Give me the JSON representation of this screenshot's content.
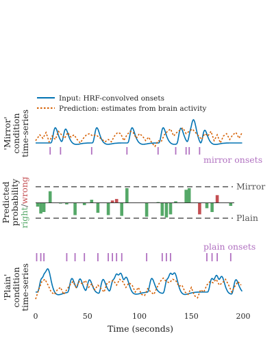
{
  "chart_data": {
    "type": "line",
    "xlabel": "Time (seconds)",
    "x_ticks": [
      0,
      50,
      100,
      150,
      200
    ],
    "xlim": [
      0,
      200
    ],
    "legend": {
      "position": "top-left",
      "entries": [
        {
          "label": "Input: HRF-convolved onsets",
          "color": "#0072b2",
          "style": "solid"
        },
        {
          "label": "Prediction: estimates from brain activity",
          "color": "#d55e00",
          "style": "dotted"
        }
      ]
    },
    "colors": {
      "input": "#0072b2",
      "prediction": "#d55e00",
      "onsets": "#b070c0",
      "right": "#55a868",
      "wrong": "#c44e52",
      "dashes": "#555555"
    },
    "panels": [
      {
        "name": "mirror",
        "ylabel_lines": [
          "'Mirror'",
          "condition",
          "time-series"
        ],
        "onset_label": "mirror onsets",
        "onsets": [
          14,
          24,
          54,
          88,
          118,
          135,
          145,
          148,
          158
        ],
        "input_baseline": 0.0,
        "prediction_series": [
          [
            0,
            0.1
          ],
          [
            4,
            0.35
          ],
          [
            7,
            0.2
          ],
          [
            10,
            0.45
          ],
          [
            13,
            0.05
          ],
          [
            16,
            0.3
          ],
          [
            19,
            0.15
          ],
          [
            22,
            0.5
          ],
          [
            25,
            0.35
          ],
          [
            28,
            0.2
          ],
          [
            31,
            0.45
          ],
          [
            34,
            0.25
          ],
          [
            37,
            0.35
          ],
          [
            40,
            0.15
          ],
          [
            43,
            0.0
          ],
          [
            46,
            0.2
          ],
          [
            49,
            0.35
          ],
          [
            52,
            0.4
          ],
          [
            55,
            0.3
          ],
          [
            58,
            0.35
          ],
          [
            61,
            0.25
          ],
          [
            64,
            0.15
          ],
          [
            67,
            0.05
          ],
          [
            70,
            0.15
          ],
          [
            73,
            0.05
          ],
          [
            76,
            0.3
          ],
          [
            79,
            0.45
          ],
          [
            82,
            0.4
          ],
          [
            85,
            0.1
          ],
          [
            88,
            0.35
          ],
          [
            91,
            0.5
          ],
          [
            94,
            0.45
          ],
          [
            97,
            0.2
          ],
          [
            100,
            0.4
          ],
          [
            103,
            0.3
          ],
          [
            106,
            0.1
          ],
          [
            109,
            0.25
          ],
          [
            112,
            0.0
          ],
          [
            115,
            -0.15
          ],
          [
            118,
            0.1
          ],
          [
            121,
            0.05
          ],
          [
            124,
            0.35
          ],
          [
            127,
            0.5
          ],
          [
            130,
            0.6
          ],
          [
            133,
            0.3
          ],
          [
            136,
            0.45
          ],
          [
            139,
            0.55
          ],
          [
            142,
            0.65
          ],
          [
            145,
            0.4
          ],
          [
            148,
            0.5
          ],
          [
            151,
            0.6
          ],
          [
            154,
            0.45
          ],
          [
            157,
            0.3
          ],
          [
            160,
            0.15
          ],
          [
            163,
            0.4
          ],
          [
            166,
            0.3
          ],
          [
            169,
            0.5
          ],
          [
            172,
            0.1
          ],
          [
            175,
            0.35
          ],
          [
            178,
            0.0
          ],
          [
            181,
            0.3
          ],
          [
            184,
            0.4
          ],
          [
            187,
            0.15
          ],
          [
            190,
            0.35
          ],
          [
            193,
            0.45
          ],
          [
            196,
            0.2
          ],
          [
            199,
            0.45
          ]
        ]
      },
      {
        "name": "plain",
        "ylabel_lines": [
          "'Plain'",
          "condition",
          "time-series"
        ],
        "onset_label": "plain onsets",
        "onsets": [
          1,
          5,
          8,
          30,
          38,
          47,
          60,
          70,
          74,
          78,
          83,
          107,
          122,
          126,
          130,
          165,
          170,
          175,
          188
        ],
        "prediction_series": [
          [
            0,
            -0.3
          ],
          [
            3,
            0.1
          ],
          [
            6,
            0.45
          ],
          [
            9,
            0.55
          ],
          [
            12,
            0.3
          ],
          [
            15,
            0.0
          ],
          [
            18,
            -0.1
          ],
          [
            21,
            0.1
          ],
          [
            24,
            0.2
          ],
          [
            27,
            -0.1
          ],
          [
            30,
            0.1
          ],
          [
            33,
            0.3
          ],
          [
            36,
            0.45
          ],
          [
            39,
            0.2
          ],
          [
            42,
            0.45
          ],
          [
            45,
            0.35
          ],
          [
            48,
            0.5
          ],
          [
            51,
            0.2
          ],
          [
            54,
            0.35
          ],
          [
            57,
            0.1
          ],
          [
            60,
            0.3
          ],
          [
            63,
            0.15
          ],
          [
            66,
            0.0
          ],
          [
            69,
            0.4
          ],
          [
            72,
            0.45
          ],
          [
            75,
            0.5
          ],
          [
            78,
            0.3
          ],
          [
            81,
            0.55
          ],
          [
            84,
            0.45
          ],
          [
            87,
            0.2
          ],
          [
            90,
            0.4
          ],
          [
            93,
            0.3
          ],
          [
            96,
            0.0
          ],
          [
            99,
            0.2
          ],
          [
            102,
            -0.1
          ],
          [
            105,
            -0.15
          ],
          [
            108,
            0.15
          ],
          [
            111,
            0.0
          ],
          [
            114,
            -0.1
          ],
          [
            117,
            0.2
          ],
          [
            120,
            0.45
          ],
          [
            123,
            0.6
          ],
          [
            126,
            0.45
          ],
          [
            129,
            0.4
          ],
          [
            132,
            0.55
          ],
          [
            135,
            0.5
          ],
          [
            138,
            0.25
          ],
          [
            141,
            0.3
          ],
          [
            144,
            0.0
          ],
          [
            147,
            -0.1
          ],
          [
            150,
            0.2
          ],
          [
            153,
            -0.15
          ],
          [
            156,
            -0.25
          ],
          [
            159,
            0.1
          ],
          [
            162,
            0.0
          ],
          [
            165,
            0.3
          ],
          [
            168,
            0.45
          ],
          [
            171,
            0.4
          ],
          [
            174,
            0.55
          ],
          [
            177,
            0.3
          ],
          [
            180,
            0.4
          ],
          [
            183,
            0.55
          ],
          [
            186,
            0.3
          ],
          [
            189,
            0.0
          ],
          [
            192,
            0.25
          ],
          [
            195,
            0.45
          ],
          [
            198,
            0.3
          ]
        ]
      }
    ],
    "probability_panel": {
      "ylabel_parts": {
        "line1": "Predicted",
        "line2": "probability",
        "right": "right",
        "slash": "/",
        "wrong": "wrong"
      },
      "upper_label": "Mirror",
      "lower_label": "Plain",
      "ylim": [
        -1,
        1
      ],
      "bars": [
        {
          "t": 2,
          "v": -0.25,
          "ok": true
        },
        {
          "t": 5,
          "v": -0.7,
          "ok": true
        },
        {
          "t": 8,
          "v": -0.6,
          "ok": true
        },
        {
          "t": 14,
          "v": 0.75,
          "ok": true
        },
        {
          "t": 24,
          "v": -0.05,
          "ok": true
        },
        {
          "t": 30,
          "v": -0.1,
          "ok": true
        },
        {
          "t": 38,
          "v": -0.8,
          "ok": true
        },
        {
          "t": 47,
          "v": -0.15,
          "ok": true
        },
        {
          "t": 54,
          "v": 0.2,
          "ok": true
        },
        {
          "t": 60,
          "v": -0.65,
          "ok": true
        },
        {
          "t": 70,
          "v": -0.8,
          "ok": true
        },
        {
          "t": 74,
          "v": 0.15,
          "ok": false
        },
        {
          "t": 78,
          "v": 0.25,
          "ok": false
        },
        {
          "t": 83,
          "v": -0.85,
          "ok": true
        },
        {
          "t": 88,
          "v": 0.95,
          "ok": true
        },
        {
          "t": 107,
          "v": -0.9,
          "ok": true
        },
        {
          "t": 118,
          "v": 0.05,
          "ok": true
        },
        {
          "t": 122,
          "v": -0.85,
          "ok": true
        },
        {
          "t": 126,
          "v": -0.95,
          "ok": true
        },
        {
          "t": 130,
          "v": -0.75,
          "ok": true
        },
        {
          "t": 135,
          "v": 0.1,
          "ok": true
        },
        {
          "t": 145,
          "v": 0.85,
          "ok": true
        },
        {
          "t": 148,
          "v": 0.95,
          "ok": true
        },
        {
          "t": 158,
          "v": -0.75,
          "ok": false
        },
        {
          "t": 165,
          "v": -0.35,
          "ok": true
        },
        {
          "t": 170,
          "v": -0.6,
          "ok": true
        },
        {
          "t": 175,
          "v": 0.5,
          "ok": false
        },
        {
          "t": 188,
          "v": -0.2,
          "ok": true
        }
      ]
    }
  }
}
